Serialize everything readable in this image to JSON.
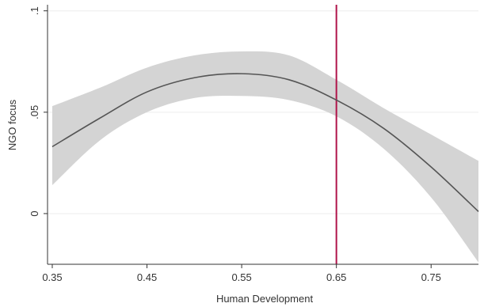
{
  "chart_data": {
    "type": "line",
    "title": "",
    "xlabel": "Human Development",
    "ylabel": "NGO focus",
    "xlim": [
      0.345,
      0.8
    ],
    "ylim": [
      -0.025,
      0.103
    ],
    "x_ticks": [
      {
        "value": 0.35,
        "label": "0.35"
      },
      {
        "value": 0.45,
        "label": "0.45"
      },
      {
        "value": 0.55,
        "label": "0.55"
      },
      {
        "value": 0.65,
        "label": "0.65"
      },
      {
        "value": 0.75,
        "label": "0.75"
      }
    ],
    "y_ticks": [
      {
        "value": 0,
        "label": "0"
      },
      {
        "value": 0.05,
        "label": ".05"
      },
      {
        "value": 0.1,
        "label": ".1"
      }
    ],
    "grid": "horizontal",
    "legend": "none",
    "series": [
      {
        "style": "line-with-confidence-band",
        "x": [
          0.35,
          0.4,
          0.45,
          0.5,
          0.55,
          0.6,
          0.65,
          0.7,
          0.75,
          0.8
        ],
        "y": [
          0.033,
          0.047,
          0.06,
          0.067,
          0.069,
          0.066,
          0.056,
          0.042,
          0.023,
          0.001
        ],
        "lower": [
          0.014,
          0.036,
          0.05,
          0.057,
          0.058,
          0.056,
          0.048,
          0.032,
          0.008,
          -0.024
        ],
        "upper": [
          0.053,
          0.062,
          0.072,
          0.078,
          0.08,
          0.078,
          0.066,
          0.052,
          0.039,
          0.026
        ]
      }
    ],
    "reference_lines": [
      {
        "axis": "x",
        "value": 0.65
      }
    ],
    "colors": {
      "band": "#d4d4d4",
      "line": "#555555",
      "reference": "#b0144a",
      "grid": "#eeeeee",
      "axis": "#333333"
    }
  }
}
